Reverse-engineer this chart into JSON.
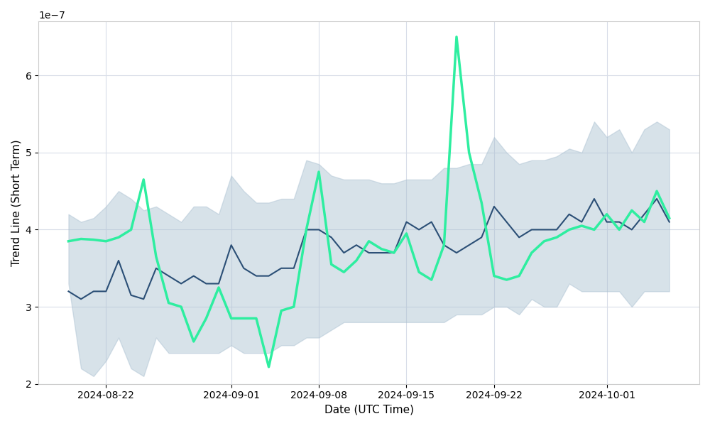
{
  "title": "",
  "xlabel": "Date (UTC Time)",
  "ylabel": "Trend Line (Short Term)",
  "scale_factor": 1e-07,
  "dates": [
    "2024-08-19",
    "2024-08-20",
    "2024-08-21",
    "2024-08-22",
    "2024-08-23",
    "2024-08-24",
    "2024-08-25",
    "2024-08-26",
    "2024-08-27",
    "2024-08-28",
    "2024-08-29",
    "2024-08-30",
    "2024-08-31",
    "2024-09-01",
    "2024-09-02",
    "2024-09-03",
    "2024-09-04",
    "2024-09-05",
    "2024-09-06",
    "2024-09-07",
    "2024-09-08",
    "2024-09-09",
    "2024-09-10",
    "2024-09-11",
    "2024-09-12",
    "2024-09-13",
    "2024-09-14",
    "2024-09-15",
    "2024-09-16",
    "2024-09-17",
    "2024-09-18",
    "2024-09-19",
    "2024-09-20",
    "2024-09-21",
    "2024-09-22",
    "2024-09-23",
    "2024-09-24",
    "2024-09-25",
    "2024-09-26",
    "2024-09-27",
    "2024-09-28",
    "2024-09-29",
    "2024-09-30",
    "2024-10-01",
    "2024-10-02",
    "2024-10-03",
    "2024-10-04",
    "2024-10-05",
    "2024-10-06"
  ],
  "trend_line": [
    3.2,
    3.1,
    3.2,
    3.2,
    3.6,
    3.15,
    3.1,
    3.5,
    3.4,
    3.3,
    3.4,
    3.3,
    3.3,
    3.8,
    3.5,
    3.4,
    3.4,
    3.5,
    3.5,
    4.0,
    4.0,
    3.9,
    3.7,
    3.8,
    3.7,
    3.7,
    3.7,
    4.1,
    4.0,
    4.1,
    3.8,
    3.7,
    3.8,
    3.9,
    4.3,
    4.1,
    3.9,
    4.0,
    4.0,
    4.0,
    4.2,
    4.1,
    4.4,
    4.1,
    4.1,
    4.0,
    4.2,
    4.4,
    4.1
  ],
  "upper_band": [
    4.2,
    4.1,
    4.15,
    4.3,
    4.5,
    4.4,
    4.25,
    4.3,
    4.2,
    4.1,
    4.3,
    4.3,
    4.2,
    4.7,
    4.5,
    4.35,
    4.35,
    4.4,
    4.4,
    4.9,
    4.85,
    4.7,
    4.65,
    4.65,
    4.65,
    4.6,
    4.6,
    4.65,
    4.65,
    4.65,
    4.8,
    4.8,
    4.85,
    4.85,
    5.2,
    5.0,
    4.85,
    4.9,
    4.9,
    4.95,
    5.05,
    5.0,
    5.4,
    5.2,
    5.3,
    5.0,
    5.3,
    5.4,
    5.3
  ],
  "lower_band": [
    3.3,
    2.2,
    2.1,
    2.3,
    2.6,
    2.2,
    2.1,
    2.6,
    2.4,
    2.4,
    2.4,
    2.4,
    2.4,
    2.5,
    2.4,
    2.4,
    2.4,
    2.5,
    2.5,
    2.6,
    2.6,
    2.7,
    2.8,
    2.8,
    2.8,
    2.8,
    2.8,
    2.8,
    2.8,
    2.8,
    2.8,
    2.9,
    2.9,
    2.9,
    3.0,
    3.0,
    2.9,
    3.1,
    3.0,
    3.0,
    3.3,
    3.2,
    3.2,
    3.2,
    3.2,
    3.0,
    3.2,
    3.2,
    3.2
  ],
  "spot_line": [
    3.85,
    3.88,
    3.87,
    3.85,
    3.9,
    4.0,
    4.65,
    3.65,
    3.05,
    3.0,
    2.55,
    2.85,
    3.25,
    2.85,
    2.85,
    2.85,
    2.22,
    2.95,
    3.0,
    4.0,
    4.75,
    3.55,
    3.45,
    3.6,
    3.85,
    3.75,
    3.7,
    3.95,
    3.45,
    3.35,
    3.8,
    6.5,
    5.0,
    4.35,
    3.4,
    3.35,
    3.4,
    3.7,
    3.85,
    3.9,
    4.0,
    4.05,
    4.0,
    4.2,
    4.0,
    4.25,
    4.1,
    4.5,
    4.15
  ],
  "xtick_dates": [
    "2024-08-22",
    "2024-09-01",
    "2024-09-08",
    "2024-09-15",
    "2024-09-22",
    "2024-10-01"
  ],
  "trend_color": "#2b4f76",
  "spot_color": "#2eeea0",
  "band_color": "#a8bfd0",
  "band_alpha": 0.45,
  "trend_linewidth": 1.5,
  "spot_linewidth": 2.5,
  "background_color": "#ffffff",
  "grid_color": "#d8dde8",
  "ylim_min": 2.0,
  "ylim_max": 6.7,
  "tick_label_fontsize": 10,
  "axis_label_fontsize": 11
}
